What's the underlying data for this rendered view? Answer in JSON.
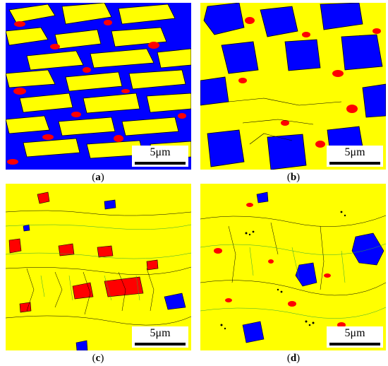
{
  "panels": [
    {
      "id": "a",
      "caption_open": "(",
      "caption_letter": "a",
      "caption_close": ")",
      "scale_label": "5μm"
    },
    {
      "id": "b",
      "caption_open": "(",
      "caption_letter": "b",
      "caption_close": ")",
      "scale_label": "5μm"
    },
    {
      "id": "c",
      "caption_open": "(",
      "caption_letter": "c",
      "caption_close": ")",
      "scale_label": "5μm"
    },
    {
      "id": "d",
      "caption_open": "(",
      "caption_letter": "d",
      "caption_close": ")",
      "scale_label": "5μm"
    }
  ],
  "colors": {
    "phase_yellow": "#ffff00",
    "phase_blue": "#0000ff",
    "phase_red": "#ff0000",
    "grain_boundary_black": "#000000",
    "grain_boundary_green": "#33aa33"
  }
}
